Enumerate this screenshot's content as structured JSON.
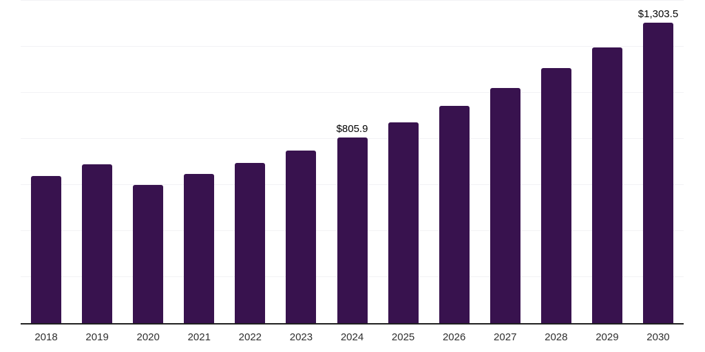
{
  "chart_data": {
    "type": "bar",
    "title": "",
    "xlabel": "",
    "ylabel": "",
    "categories": [
      "2018",
      "2019",
      "2020",
      "2021",
      "2022",
      "2023",
      "2024",
      "2025",
      "2026",
      "2027",
      "2028",
      "2029",
      "2030"
    ],
    "values": [
      638,
      690,
      600,
      647,
      697,
      749,
      805.9,
      872,
      943,
      1022,
      1108,
      1197,
      1303.5
    ],
    "point_labels": {
      "2024": "$805.9",
      "2030": "$1,303.5"
    },
    "ylim": [
      0,
      1400
    ],
    "grid_step": 200,
    "grid_on": true,
    "legend": "none",
    "bar_color": "#38124e",
    "axis_line_color": "#1f1f1f",
    "gridline_color": "#f2f2f4",
    "tick_label_color": "#2e2e2e",
    "point_label_color": "#000000"
  }
}
